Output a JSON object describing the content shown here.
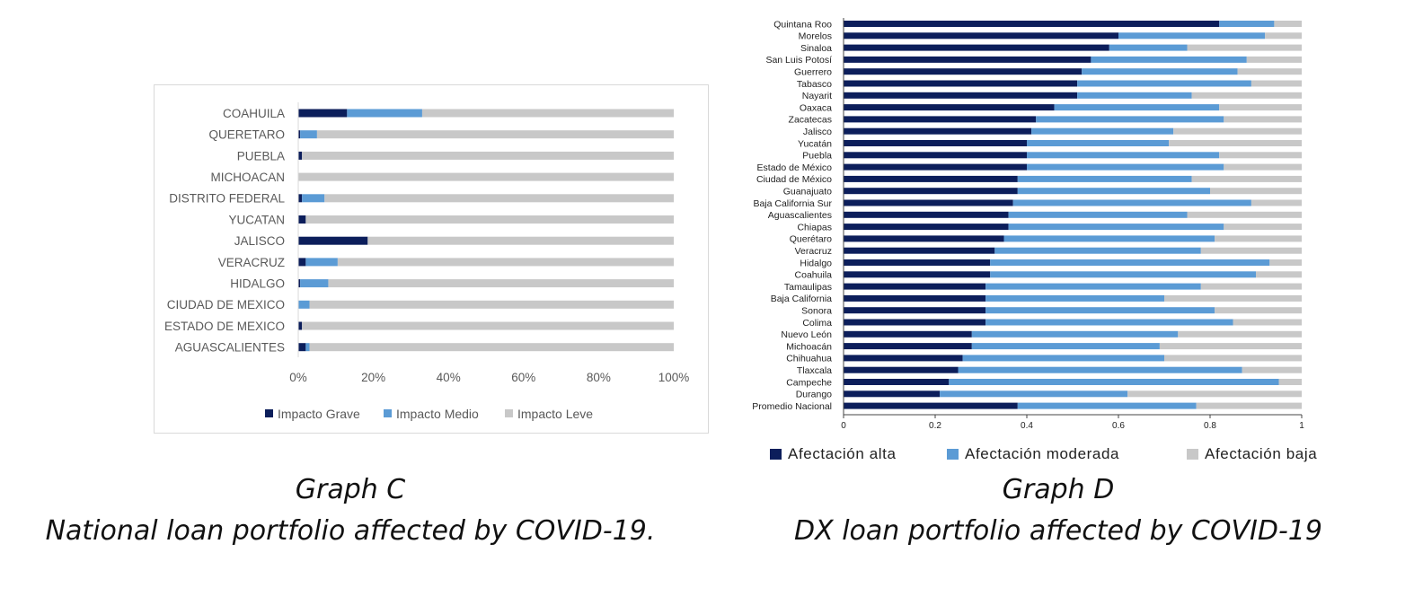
{
  "captions": {
    "c_title": "Graph C",
    "c_subtitle": "National loan portfolio affected by COVID-19.",
    "d_title": "Graph D",
    "d_subtitle": "DX loan portfolio affected by COVID-19"
  },
  "colors": {
    "high": "#0c1e5b",
    "medium": "#5b9bd5",
    "low": "#c8c8c8"
  },
  "chart_data": [
    {
      "type": "bar",
      "orientation": "horizontal",
      "stacked": true,
      "categories": [
        "COAHUILA",
        "QUERETARO",
        "PUEBLA",
        "MICHOACAN",
        "DISTRITO FEDERAL",
        "YUCATAN",
        "JALISCO",
        "VERACRUZ",
        "HIDALGO",
        "CIUDAD DE MEXICO",
        "ESTADO DE MEXICO",
        "AGUASCALIENTES"
      ],
      "series": [
        {
          "name": "Impacto Grave",
          "values": [
            13,
            0.5,
            1,
            0,
            1,
            2,
            18.5,
            2,
            0.5,
            0,
            1,
            2
          ]
        },
        {
          "name": "Impacto Medio",
          "values": [
            20,
            4.5,
            0,
            0,
            6,
            0,
            0,
            8.5,
            7.5,
            3,
            0,
            1
          ]
        },
        {
          "name": "Impacto Leve",
          "values": [
            67,
            95,
            99,
            100,
            93,
            98,
            81.5,
            89.5,
            92,
            97,
            99,
            97
          ]
        }
      ],
      "xlim": [
        0,
        100
      ],
      "xticks": [
        "0%",
        "20%",
        "40%",
        "60%",
        "80%",
        "100%"
      ],
      "legend": "bottom",
      "grid": false
    },
    {
      "type": "bar",
      "orientation": "horizontal",
      "stacked": true,
      "categories": [
        "Quintana Roo",
        "Morelos",
        "Sinaloa",
        "San Luis Potosí",
        "Guerrero",
        "Tabasco",
        "Nayarit",
        "Oaxaca",
        "Zacatecas",
        "Jalisco",
        "Yucatán",
        "Puebla",
        "Estado de México",
        "Ciudad de México",
        "Guanajuato",
        "Baja California Sur",
        "Aguascalientes",
        "Chiapas",
        "Querétaro",
        "Veracruz",
        "Hidalgo",
        "Coahuila",
        "Tamaulipas",
        "Baja California",
        "Sonora",
        "Colima",
        "Nuevo León",
        "Michoacán",
        "Chihuahua",
        "Tlaxcala",
        "Campeche",
        "Durango",
        "Promedio Nacional"
      ],
      "series": [
        {
          "name": "Afectación alta",
          "values": [
            0.82,
            0.6,
            0.58,
            0.54,
            0.52,
            0.51,
            0.51,
            0.46,
            0.42,
            0.41,
            0.4,
            0.4,
            0.4,
            0.38,
            0.38,
            0.37,
            0.36,
            0.36,
            0.35,
            0.33,
            0.32,
            0.32,
            0.31,
            0.31,
            0.31,
            0.31,
            0.28,
            0.28,
            0.26,
            0.25,
            0.23,
            0.21,
            0.38
          ]
        },
        {
          "name": "Afectación moderada",
          "values": [
            0.12,
            0.32,
            0.17,
            0.34,
            0.34,
            0.38,
            0.25,
            0.36,
            0.41,
            0.31,
            0.31,
            0.42,
            0.43,
            0.38,
            0.42,
            0.52,
            0.39,
            0.47,
            0.46,
            0.45,
            0.61,
            0.58,
            0.47,
            0.39,
            0.5,
            0.54,
            0.45,
            0.41,
            0.44,
            0.62,
            0.72,
            0.41,
            0.39
          ]
        },
        {
          "name": "Afectación baja",
          "values": [
            0.06,
            0.08,
            0.25,
            0.12,
            0.14,
            0.11,
            0.24,
            0.18,
            0.17,
            0.28,
            0.29,
            0.18,
            0.17,
            0.24,
            0.2,
            0.11,
            0.25,
            0.17,
            0.19,
            0.22,
            0.07,
            0.1,
            0.22,
            0.3,
            0.19,
            0.15,
            0.27,
            0.31,
            0.3,
            0.13,
            0.05,
            0.38,
            0.23
          ]
        }
      ],
      "xlim": [
        0,
        1
      ],
      "xticks": [
        "0",
        "0.2",
        "0.4",
        "0.6",
        "0.8",
        "1"
      ],
      "legend": "bottom",
      "grid": false
    }
  ]
}
